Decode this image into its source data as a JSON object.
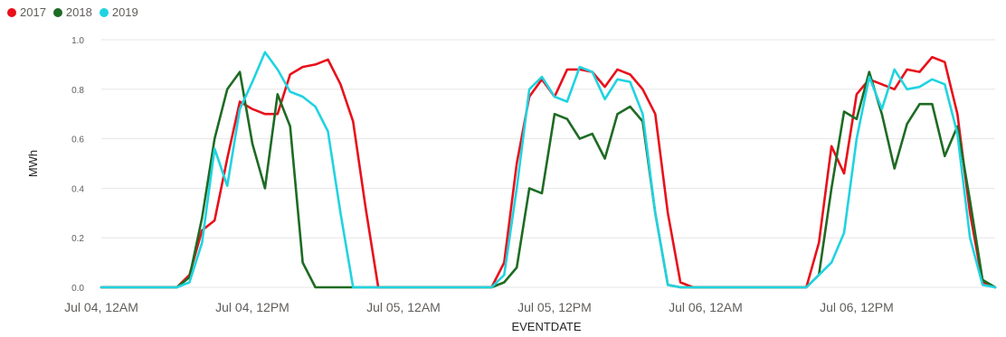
{
  "chart_data": {
    "type": "line",
    "xlabel": "EVENTDATE",
    "ylabel": "MWh",
    "ylim": [
      0,
      1.0
    ],
    "xlim": [
      "Jul 04, 12AM",
      "Jul 07, 02AM"
    ],
    "x_tick_labels": [
      "Jul 04, 12AM",
      "Jul 04, 12PM",
      "Jul 05, 12AM",
      "Jul 05, 12PM",
      "Jul 06, 12AM",
      "Jul 06, 12PM"
    ],
    "y_tick_labels": [
      "0.0",
      "0.2",
      "0.4",
      "0.6",
      "0.8",
      "1.0"
    ],
    "grid": "horizontal",
    "legend_position": "top-left",
    "x_unit": "hours from Jul 04, 12AM",
    "series": [
      {
        "name": "2017",
        "color": "#e8101b",
        "points": [
          [
            0,
            0
          ],
          [
            5,
            0
          ],
          [
            6,
            0
          ],
          [
            7,
            0.05
          ],
          [
            8,
            0.23
          ],
          [
            9,
            0.27
          ],
          [
            10,
            0.52
          ],
          [
            11,
            0.75
          ],
          [
            12,
            0.72
          ],
          [
            13,
            0.7
          ],
          [
            14,
            0.7
          ],
          [
            15,
            0.86
          ],
          [
            16,
            0.89
          ],
          [
            17,
            0.9
          ],
          [
            18,
            0.92
          ],
          [
            19,
            0.82
          ],
          [
            20,
            0.67
          ],
          [
            21,
            0.32
          ],
          [
            22,
            0
          ],
          [
            30,
            0
          ],
          [
            31,
            0
          ],
          [
            32,
            0.1
          ],
          [
            33,
            0.5
          ],
          [
            34,
            0.77
          ],
          [
            35,
            0.84
          ],
          [
            36,
            0.77
          ],
          [
            37,
            0.88
          ],
          [
            38,
            0.88
          ],
          [
            39,
            0.87
          ],
          [
            40,
            0.81
          ],
          [
            41,
            0.88
          ],
          [
            42,
            0.86
          ],
          [
            43,
            0.8
          ],
          [
            44,
            0.7
          ],
          [
            45,
            0.3
          ],
          [
            46,
            0.02
          ],
          [
            47,
            0
          ],
          [
            55,
            0
          ],
          [
            56,
            0
          ],
          [
            57,
            0.18
          ],
          [
            58,
            0.57
          ],
          [
            59,
            0.46
          ],
          [
            60,
            0.78
          ],
          [
            61,
            0.84
          ],
          [
            62,
            0.82
          ],
          [
            63,
            0.8
          ],
          [
            64,
            0.88
          ],
          [
            65,
            0.87
          ],
          [
            66,
            0.93
          ],
          [
            67,
            0.91
          ],
          [
            68,
            0.7
          ],
          [
            69,
            0.3
          ],
          [
            70,
            0.02
          ],
          [
            71,
            0
          ]
        ]
      },
      {
        "name": "2018",
        "color": "#1e6b24",
        "points": [
          [
            0,
            0
          ],
          [
            5,
            0
          ],
          [
            6,
            0
          ],
          [
            7,
            0.04
          ],
          [
            8,
            0.28
          ],
          [
            9,
            0.6
          ],
          [
            10,
            0.8
          ],
          [
            11,
            0.87
          ],
          [
            12,
            0.58
          ],
          [
            13,
            0.4
          ],
          [
            14,
            0.78
          ],
          [
            15,
            0.65
          ],
          [
            16,
            0.1
          ],
          [
            17,
            0
          ],
          [
            22,
            0
          ],
          [
            30,
            0
          ],
          [
            31,
            0
          ],
          [
            32,
            0.02
          ],
          [
            33,
            0.08
          ],
          [
            34,
            0.4
          ],
          [
            35,
            0.38
          ],
          [
            36,
            0.7
          ],
          [
            37,
            0.68
          ],
          [
            38,
            0.6
          ],
          [
            39,
            0.62
          ],
          [
            40,
            0.52
          ],
          [
            41,
            0.7
          ],
          [
            42,
            0.73
          ],
          [
            43,
            0.67
          ],
          [
            44,
            0.3
          ],
          [
            45,
            0.01
          ],
          [
            46,
            0
          ],
          [
            55,
            0
          ],
          [
            56,
            0
          ],
          [
            57,
            0.05
          ],
          [
            58,
            0.4
          ],
          [
            59,
            0.71
          ],
          [
            60,
            0.68
          ],
          [
            61,
            0.87
          ],
          [
            62,
            0.7
          ],
          [
            63,
            0.48
          ],
          [
            64,
            0.66
          ],
          [
            65,
            0.74
          ],
          [
            66,
            0.74
          ],
          [
            67,
            0.53
          ],
          [
            68,
            0.65
          ],
          [
            69,
            0.35
          ],
          [
            70,
            0.03
          ],
          [
            71,
            0
          ]
        ]
      },
      {
        "name": "2019",
        "color": "#20d3e0",
        "points": [
          [
            0,
            0
          ],
          [
            5,
            0
          ],
          [
            6,
            0
          ],
          [
            7,
            0.02
          ],
          [
            8,
            0.18
          ],
          [
            9,
            0.56
          ],
          [
            10,
            0.41
          ],
          [
            11,
            0.72
          ],
          [
            12,
            0.83
          ],
          [
            13,
            0.95
          ],
          [
            14,
            0.88
          ],
          [
            15,
            0.79
          ],
          [
            16,
            0.77
          ],
          [
            17,
            0.73
          ],
          [
            18,
            0.63
          ],
          [
            19,
            0.3
          ],
          [
            20,
            0
          ],
          [
            22,
            0
          ],
          [
            30,
            0
          ],
          [
            31,
            0
          ],
          [
            32,
            0.05
          ],
          [
            33,
            0.4
          ],
          [
            34,
            0.8
          ],
          [
            35,
            0.85
          ],
          [
            36,
            0.77
          ],
          [
            37,
            0.75
          ],
          [
            38,
            0.89
          ],
          [
            39,
            0.87
          ],
          [
            40,
            0.76
          ],
          [
            41,
            0.84
          ],
          [
            42,
            0.83
          ],
          [
            43,
            0.7
          ],
          [
            44,
            0.3
          ],
          [
            45,
            0.01
          ],
          [
            46,
            0
          ],
          [
            55,
            0
          ],
          [
            56,
            0
          ],
          [
            57,
            0.05
          ],
          [
            58,
            0.1
          ],
          [
            59,
            0.22
          ],
          [
            60,
            0.6
          ],
          [
            61,
            0.85
          ],
          [
            62,
            0.72
          ],
          [
            63,
            0.88
          ],
          [
            64,
            0.8
          ],
          [
            65,
            0.81
          ],
          [
            66,
            0.84
          ],
          [
            67,
            0.82
          ],
          [
            68,
            0.62
          ],
          [
            69,
            0.2
          ],
          [
            70,
            0.01
          ],
          [
            71,
            0
          ]
        ]
      }
    ]
  }
}
